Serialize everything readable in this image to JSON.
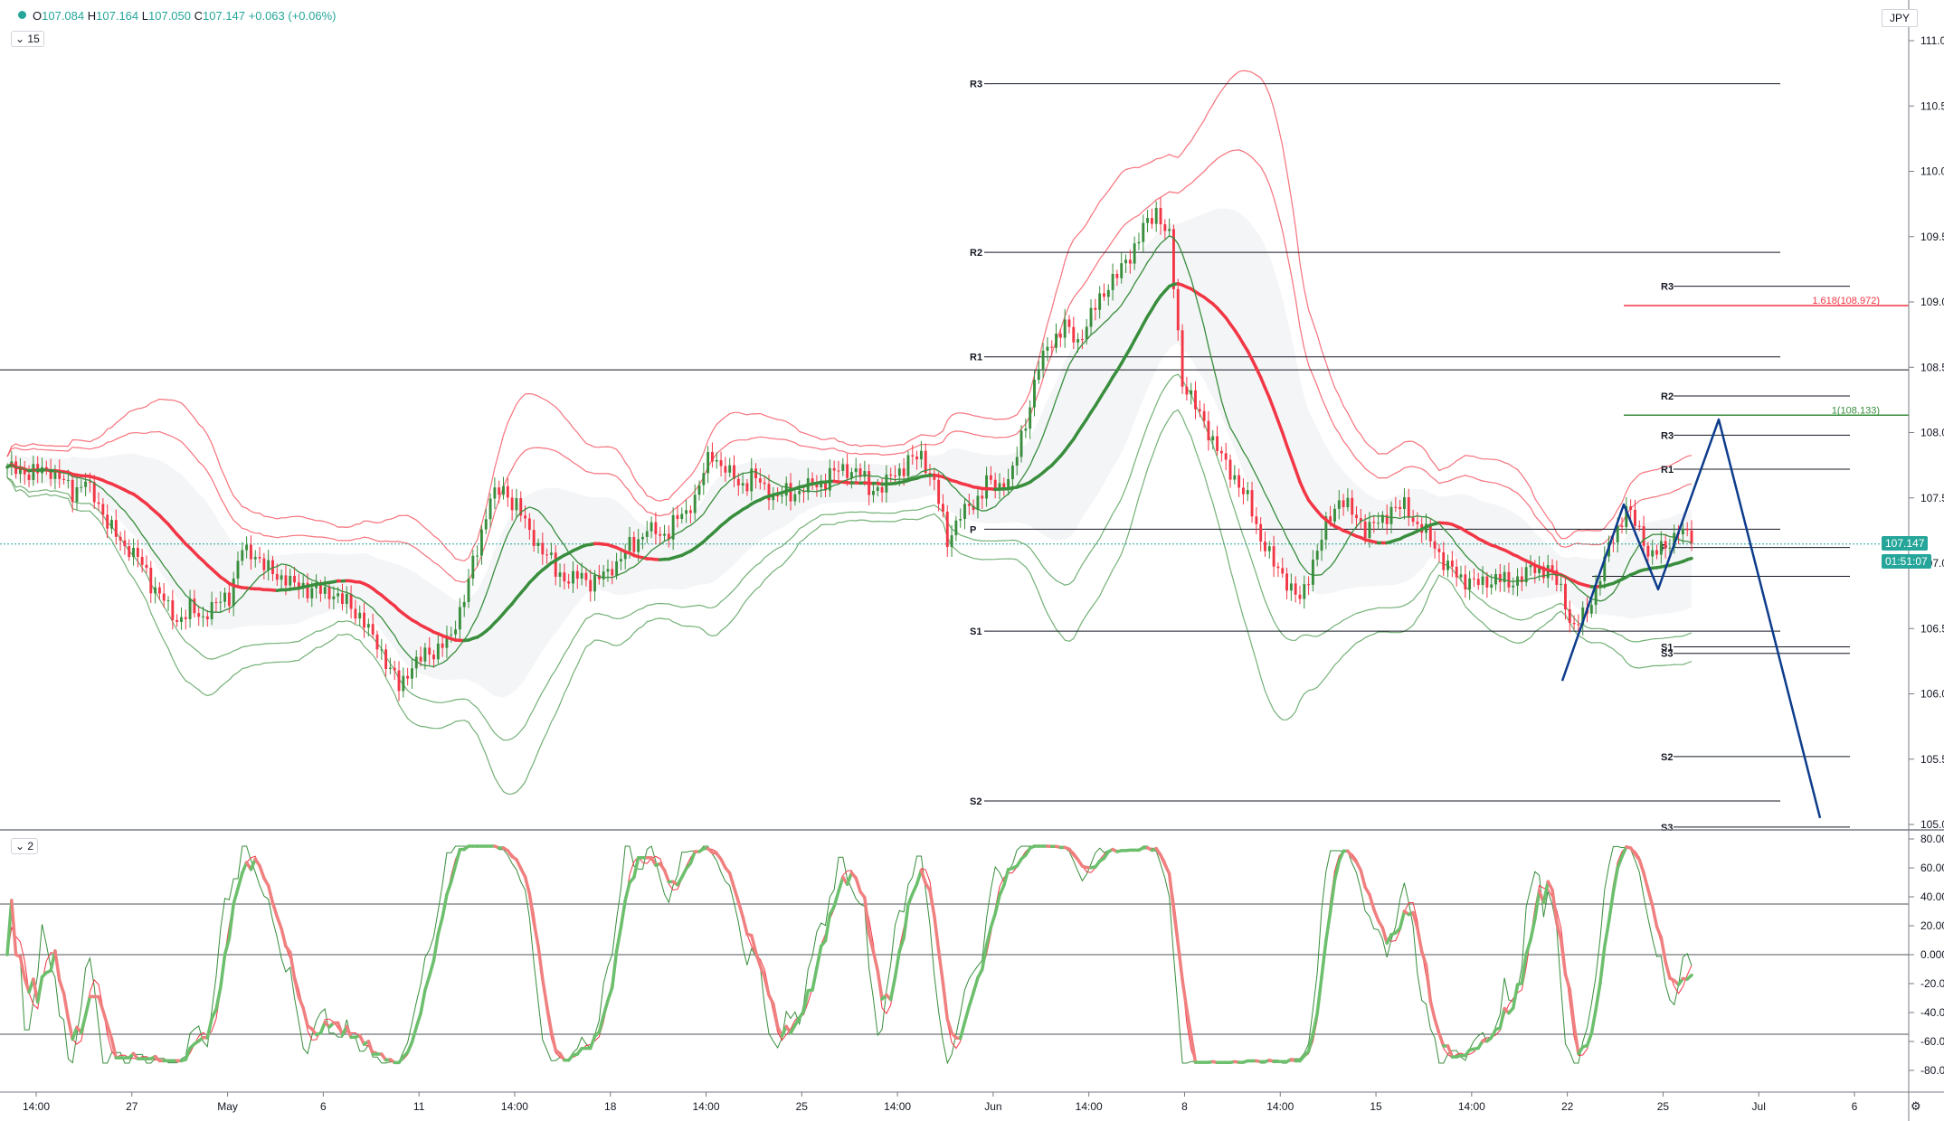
{
  "header": {
    "ohlc": [
      {
        "label": "O",
        "value": "107.084"
      },
      {
        "label": "H",
        "value": "107.164"
      },
      {
        "label": "L",
        "value": "107.050"
      },
      {
        "label": "C",
        "value": "107.147"
      }
    ],
    "change": "+0.063 (+0.06%)",
    "price_panel_interval": "15",
    "oscillator_panel_interval": "2",
    "currency": "JPY",
    "last_price": "107.147",
    "countdown": "01:51:07"
  },
  "chart_data": {
    "type": "candlestick",
    "price_axis": {
      "min": 105.0,
      "max": 111.0,
      "ticks": [
        "111.000",
        "110.500",
        "110.000",
        "109.500",
        "109.000",
        "108.500",
        "108.000",
        "107.500",
        "107.000",
        "106.500",
        "106.000",
        "105.500",
        "105.000"
      ]
    },
    "oscillator_axis": {
      "min": -80,
      "max": 80,
      "ticks": [
        "80.000",
        "60.000",
        "40.000",
        "20.000",
        "0.000",
        "-20.000",
        "-40.000",
        "-60.000",
        "-80.000"
      ],
      "levels": [
        35,
        0,
        -55
      ]
    },
    "time_axis": {
      "labels": [
        "14:00",
        "27",
        "May",
        "6",
        "11",
        "14:00",
        "18",
        "14:00",
        "25",
        "14:00",
        "Jun",
        "14:00",
        "8",
        "14:00",
        "15",
        "14:00",
        "22",
        "25",
        "Jul",
        "6"
      ]
    },
    "close_path": [
      107.7,
      107.72,
      107.68,
      107.75,
      107.65,
      107.55,
      107.6,
      107.45,
      107.25,
      107.15,
      107.05,
      106.85,
      106.7,
      106.55,
      106.65,
      106.6,
      106.7,
      106.75,
      107.1,
      107.05,
      106.95,
      106.9,
      106.85,
      106.8,
      106.78,
      106.75,
      106.7,
      106.6,
      106.45,
      106.25,
      106.05,
      106.2,
      106.3,
      106.35,
      106.45,
      106.75,
      107.1,
      107.5,
      107.55,
      107.45,
      107.25,
      107.1,
      106.95,
      106.85,
      106.9,
      106.85,
      106.95,
      107.05,
      107.15,
      107.25,
      107.2,
      107.3,
      107.4,
      107.6,
      107.85,
      107.7,
      107.6,
      107.65,
      107.6,
      107.5,
      107.55,
      107.55,
      107.6,
      107.65,
      107.75,
      107.7,
      107.6,
      107.55,
      107.7,
      107.75,
      107.85,
      107.6,
      107.2,
      107.35,
      107.45,
      107.6,
      107.6,
      107.7,
      108.1,
      108.5,
      108.7,
      108.8,
      108.7,
      108.9,
      109.1,
      109.2,
      109.35,
      109.55,
      109.7,
      109.5,
      108.4,
      108.2,
      108.0,
      107.8,
      107.65,
      107.5,
      107.2,
      107.0,
      106.85,
      106.7,
      107.0,
      107.3,
      107.5,
      107.4,
      107.25,
      107.3,
      107.4,
      107.45,
      107.3,
      107.2,
      107.0,
      106.9,
      106.85,
      106.85,
      106.9,
      106.85,
      106.9,
      106.95,
      106.95,
      106.8,
      106.5,
      106.65,
      106.9,
      107.2,
      107.4,
      107.25,
      107.05,
      107.15,
      107.25,
      107.15
    ],
    "series": [
      {
        "name": "",
        "type": "ema-fast"
      },
      {
        "name": "",
        "type": "ema-slow"
      },
      {
        "name": "",
        "type": "bollinger"
      }
    ],
    "pivots_left": [
      {
        "label": "R3",
        "value": 110.67
      },
      {
        "label": "R2",
        "value": 109.38
      },
      {
        "label": "R1",
        "value": 108.58
      },
      {
        "label": "P",
        "value": 107.26
      },
      {
        "label": "S1",
        "value": 106.48
      },
      {
        "label": "S2",
        "value": 105.18
      }
    ],
    "pivots_right": [
      {
        "label": "R3",
        "value": 109.12
      },
      {
        "label": "R2",
        "value": 108.28
      },
      {
        "label": "R3",
        "value": 107.98
      },
      {
        "label": "R1",
        "value": 107.72
      },
      {
        "label": "P",
        "value": 107.12
      },
      {
        "label": "S1",
        "value": 106.36
      },
      {
        "label": "S3",
        "value": 106.31
      },
      {
        "label": "S2",
        "value": 105.52
      },
      {
        "label": "S3",
        "value": 104.98
      }
    ],
    "horizontal_line": 108.48,
    "extra_line": 106.9,
    "fib_levels": [
      {
        "label": "1.618(108.972)",
        "value": 108.972,
        "color": "#f23645"
      },
      {
        "label": "1(108.133)",
        "value": 108.133,
        "color": "#388e3c"
      }
    ],
    "projection": [
      [
        106.1
      ],
      [
        107.45
      ],
      [
        106.8
      ],
      [
        108.1
      ],
      [
        105.05
      ]
    ]
  },
  "colors": {
    "up": "#388e3c",
    "down": "#f23645",
    "projection": "#0d3c8c",
    "grid": "#e0e3eb",
    "last": "#26a69a"
  }
}
